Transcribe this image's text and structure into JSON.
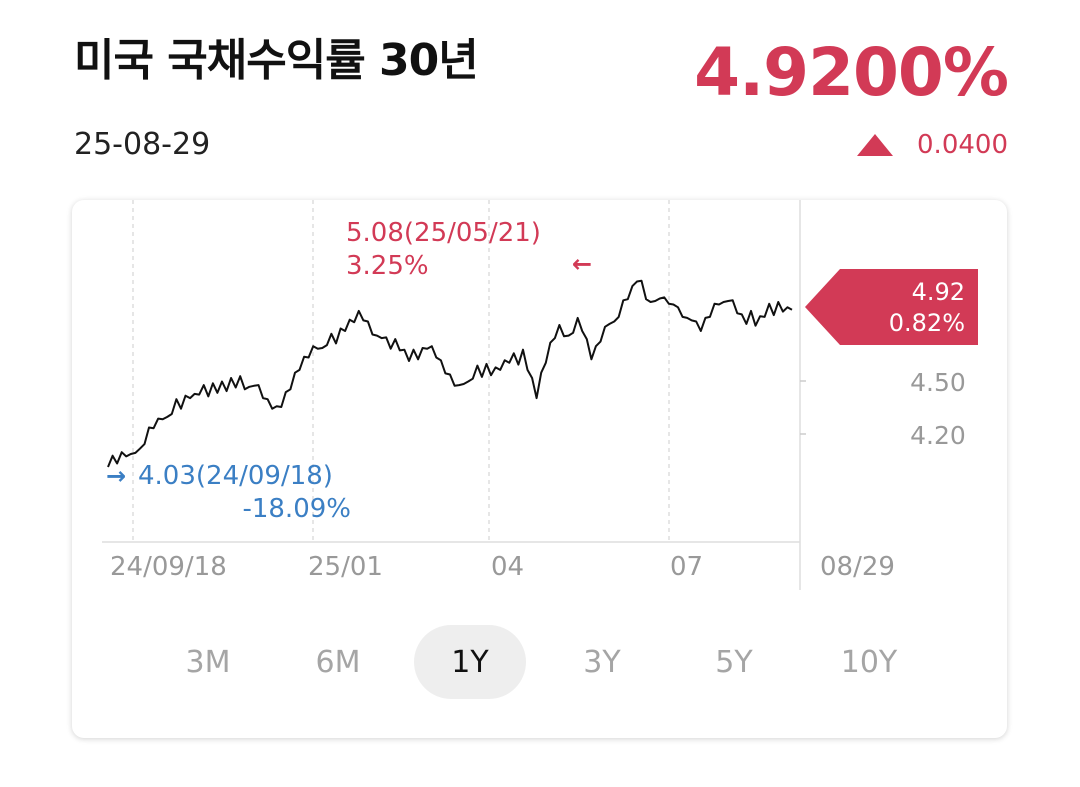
{
  "header": {
    "title": "미국 국채수익률 30년",
    "date": "25-08-29",
    "price": "4.9200%",
    "change": "0.0400",
    "change_direction": "up",
    "up_color": "#d23a56"
  },
  "chart_data": {
    "type": "line",
    "x_ticks": [
      "24/09/18",
      "25/01",
      "04",
      "07",
      "08/29"
    ],
    "y_ticks": [
      "4.50",
      "4.20"
    ],
    "ylim": [
      3.9,
      5.2
    ],
    "grid": "vertical dashed",
    "current": {
      "value": "4.92",
      "pct": "0.82%",
      "color": "#d23a56"
    },
    "high": {
      "label": "5.08(25/05/21)",
      "pct": "3.25%",
      "color": "#d23a56"
    },
    "low": {
      "label": "4.03(24/09/18)",
      "pct": "-18.09%",
      "color": "#3b7fc4"
    },
    "series": [
      {
        "values": [
          4.03,
          4.06,
          4.05,
          4.08,
          4.09,
          4.07,
          4.11,
          4.1,
          4.16,
          4.22,
          4.25,
          4.27,
          4.3,
          4.28,
          4.33,
          4.38,
          4.36,
          4.4,
          4.42,
          4.41,
          4.44,
          4.46,
          4.43,
          4.47,
          4.45,
          4.48,
          4.46,
          4.5,
          4.48,
          4.51,
          4.47,
          4.45,
          4.49,
          4.46,
          4.42,
          4.38,
          4.36,
          4.34,
          4.37,
          4.42,
          4.47,
          4.53,
          4.58,
          4.62,
          4.65,
          4.68,
          4.7,
          4.67,
          4.72,
          4.75,
          4.73,
          4.78,
          4.8,
          4.83,
          4.85,
          4.88,
          4.86,
          4.82,
          4.78,
          4.74,
          4.76,
          4.73,
          4.7,
          4.72,
          4.69,
          4.66,
          4.63,
          4.66,
          4.64,
          4.67,
          4.7,
          4.68,
          4.65,
          4.6,
          4.56,
          4.52,
          4.49,
          4.46,
          4.5,
          4.48,
          4.53,
          4.57,
          4.54,
          4.58,
          4.55,
          4.56,
          4.58,
          4.6,
          4.62,
          4.64,
          4.61,
          4.66,
          4.58,
          4.5,
          4.42,
          4.53,
          4.62,
          4.7,
          4.76,
          4.8,
          4.77,
          4.74,
          4.79,
          4.84,
          4.8,
          4.72,
          4.64,
          4.68,
          4.74,
          4.79,
          4.84,
          4.82,
          4.88,
          4.94,
          4.98,
          5.02,
          5.08,
          5.05,
          4.98,
          4.93,
          4.97,
          4.95,
          4.99,
          4.92,
          4.95,
          4.9,
          4.88,
          4.84,
          4.86,
          4.82,
          4.8,
          4.84,
          4.88,
          4.92,
          4.95,
          4.93,
          4.97,
          4.94,
          4.9,
          4.86,
          4.84,
          4.88,
          4.83,
          4.85,
          4.88,
          4.92,
          4.89,
          4.93,
          4.91,
          4.9,
          4.92
        ]
      }
    ]
  },
  "ranges": [
    {
      "label": "3M",
      "active": false
    },
    {
      "label": "6M",
      "active": false
    },
    {
      "label": "1Y",
      "active": true
    },
    {
      "label": "3Y",
      "active": false
    },
    {
      "label": "5Y",
      "active": false
    },
    {
      "label": "10Y",
      "active": false
    }
  ]
}
